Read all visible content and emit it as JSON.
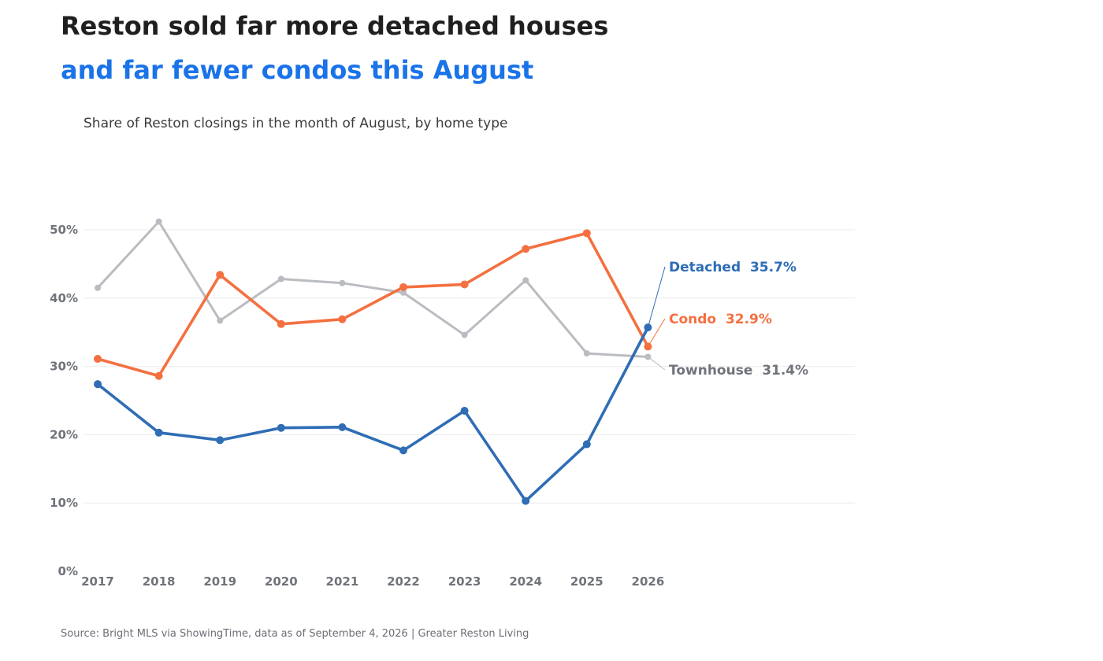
{
  "title_line1": "Reston sold far more detached houses",
  "title_line2": "and far fewer condos this August",
  "subtitle": "Share of Reston closings in the month of August, by home type",
  "footer": "Source: Bright MLS via ShowingTime, data as of September 4, 2026  |  Greater Reston Living",
  "chart_data": {
    "type": "line",
    "x": [
      "2017",
      "2018",
      "2019",
      "2020",
      "2021",
      "2022",
      "2023",
      "2024",
      "2025",
      "2026"
    ],
    "ylim": [
      0,
      50
    ],
    "yticks": [
      0,
      10,
      20,
      30,
      40,
      50
    ],
    "ytick_labels": [
      "0%",
      "10%",
      "20%",
      "30%",
      "40%",
      "50%"
    ],
    "grid": true,
    "series": [
      {
        "name": "Townhouse",
        "label": "31.4%",
        "color": "#b9bcc0",
        "text_color": "#6f737a",
        "values": [
          41.5,
          51.2,
          36.7,
          42.8,
          42.2,
          40.8,
          34.6,
          42.6,
          31.9,
          31.4
        ]
      },
      {
        "name": "Condo",
        "label": "32.9%",
        "color": "#f47040",
        "text_color": "#f47040",
        "values": [
          31.1,
          28.6,
          43.4,
          36.2,
          36.9,
          41.6,
          42.0,
          47.2,
          49.5,
          32.9
        ]
      },
      {
        "name": "Detached",
        "label": "35.7%",
        "color": "#2f6db5",
        "text_color": "#2f6db5",
        "values": [
          27.4,
          20.3,
          19.2,
          21.0,
          21.1,
          17.7,
          23.5,
          10.3,
          18.6,
          35.7
        ]
      }
    ]
  }
}
